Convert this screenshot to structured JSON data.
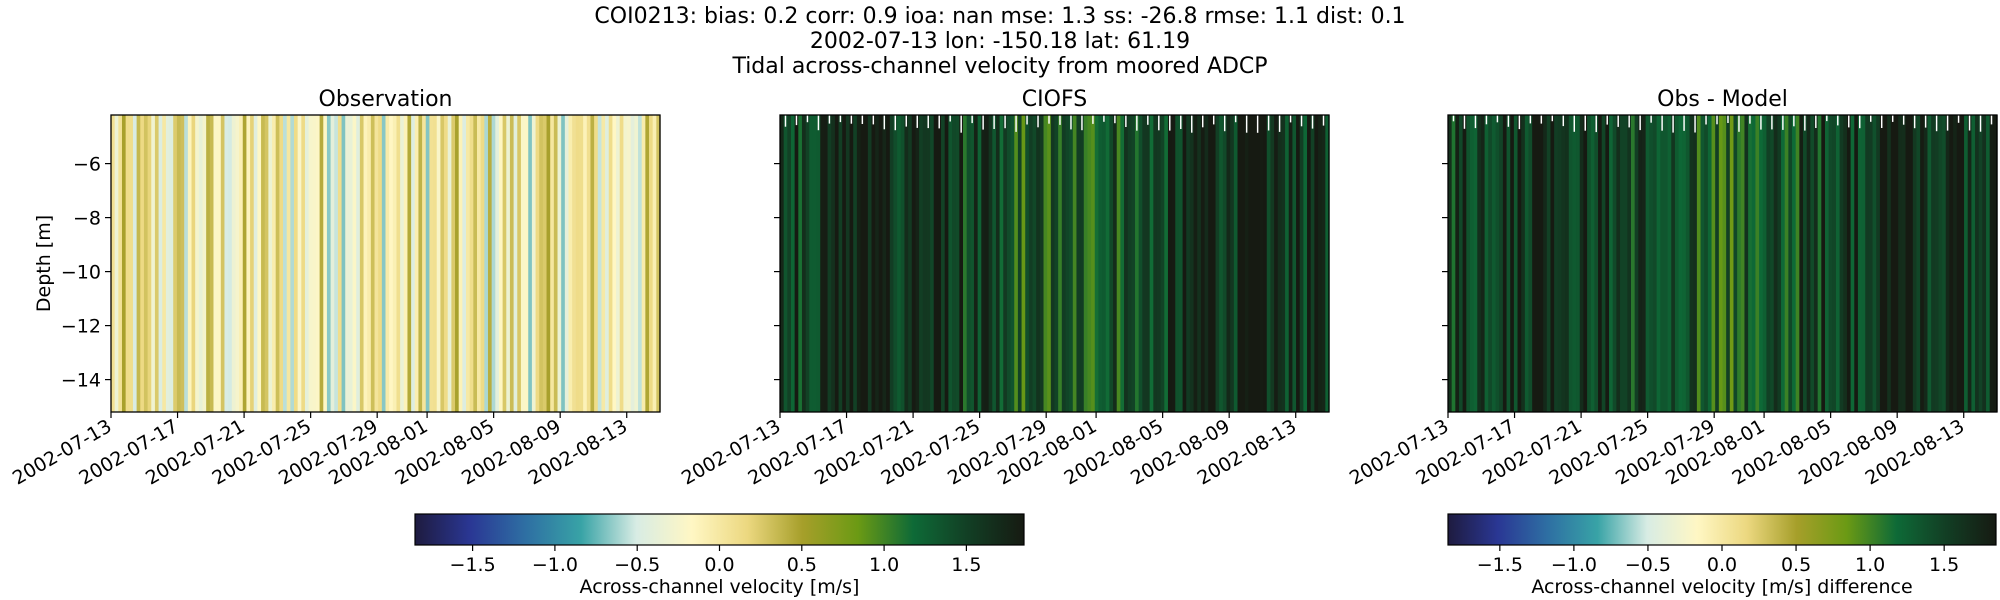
{
  "header": {
    "line1": "COI0213: bias: 0.2  corr: 0.9  ioa: nan  mse: 1.3  ss: -26.8  rmse: 1.1  dist: 0.1",
    "line2": "2002-07-13 lon: -150.18 lat: 61.19",
    "line3": "Tidal across-channel velocity from moored ADCP"
  },
  "colors": {
    "colormap_stops": [
      "#1e1b3f",
      "#2a3794",
      "#2e6fa3",
      "#38a3a6",
      "#d8ece4",
      "#fff7c4",
      "#ecd880",
      "#a69f2a",
      "#6b9a14",
      "#0e6a37",
      "#123e24",
      "#161a12"
    ],
    "axis": "#000000"
  },
  "chart_data": [
    {
      "type": "heatmap",
      "title": "Observation",
      "ylabel": "Depth [m]",
      "xlabel": "",
      "ylim": [
        -15.2,
        -4.2
      ],
      "yticks": [
        -6,
        -8,
        -10,
        -12,
        -14
      ],
      "xlim": [
        "2002-07-13",
        "2002-08-15"
      ],
      "xticks": [
        "2002-07-13",
        "2002-07-17",
        "2002-07-21",
        "2002-07-25",
        "2002-07-29",
        "2002-08-01",
        "2002-08-05",
        "2002-08-09",
        "2002-08-13"
      ],
      "colorbar": "shared-bottom",
      "value_pattern": "tidal across-channel velocity, mostly -0.7 to 0.5 m/s"
    },
    {
      "type": "heatmap",
      "title": "CIOFS",
      "xlabel": "",
      "ylim": [
        -15.2,
        -4.2
      ],
      "yticks": [
        -6,
        -8,
        -10,
        -12,
        -14
      ],
      "xlim": [
        "2002-07-13",
        "2002-08-15"
      ],
      "xticks": [
        "2002-07-13",
        "2002-07-17",
        "2002-07-21",
        "2002-07-25",
        "2002-07-29",
        "2002-08-01",
        "2002-08-05",
        "2002-08-09",
        "2002-08-13"
      ],
      "colorbar": "shared-bottom",
      "value_pattern": "mostly 1.0 to 2.0 m/s"
    },
    {
      "type": "heatmap",
      "title": "Obs - Model",
      "xlabel": "",
      "ylim": [
        -15.2,
        -4.2
      ],
      "yticks": [
        -6,
        -8,
        -10,
        -12,
        -14
      ],
      "xlim": [
        "2002-07-13",
        "2002-08-15"
      ],
      "xticks": [
        "2002-07-13",
        "2002-07-17",
        "2002-07-21",
        "2002-07-25",
        "2002-07-29",
        "2002-08-01",
        "2002-08-05",
        "2002-08-09",
        "2002-08-13"
      ],
      "colorbar": "own-bottom",
      "value_pattern": "mostly 1.0 to 2.0 m/s difference"
    }
  ],
  "colorbars": [
    {
      "label": "Across-channel velocity [m/s]",
      "range": [
        -1.85,
        1.85
      ],
      "ticks": [
        -1.5,
        -1.0,
        -0.5,
        0.0,
        0.5,
        1.0,
        1.5
      ],
      "tick_labels": [
        "−1.5",
        "−1.0",
        "−0.5",
        "0.0",
        "0.5",
        "1.0",
        "1.5"
      ]
    },
    {
      "label": "Across-channel velocity [m/s] difference",
      "range": [
        -1.85,
        1.85
      ],
      "ticks": [
        -1.5,
        -1.0,
        -0.5,
        0.0,
        0.5,
        1.0,
        1.5
      ],
      "tick_labels": [
        "−1.5",
        "−1.0",
        "−0.5",
        "0.0",
        "0.5",
        "1.0",
        "1.5"
      ]
    }
  ],
  "ytick_labels": [
    "−6",
    "−8",
    "−10",
    "−12",
    "−14"
  ]
}
